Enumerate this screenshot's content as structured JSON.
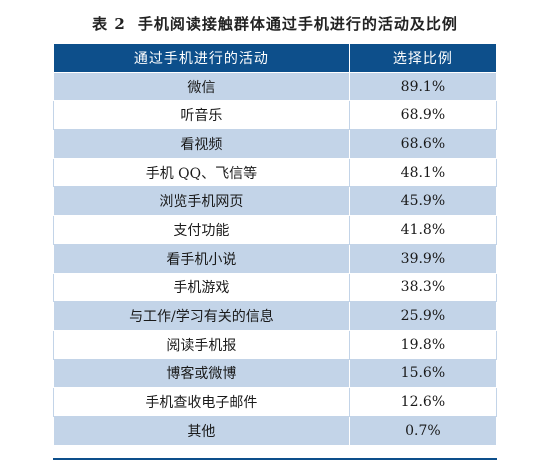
{
  "caption": {
    "number": "表 2",
    "title": "手机阅读接触群体通过手机进行的活动及比例"
  },
  "table": {
    "headers": [
      "通过手机进行的活动",
      "选择比例"
    ],
    "rows": [
      {
        "activity": "微信",
        "ratio": "89.1%"
      },
      {
        "activity": "听音乐",
        "ratio": "68.9%"
      },
      {
        "activity": "看视频",
        "ratio": "68.6%"
      },
      {
        "activity": "手机 QQ、飞信等",
        "ratio": "48.1%"
      },
      {
        "activity": "浏览手机网页",
        "ratio": "45.9%"
      },
      {
        "activity": "支付功能",
        "ratio": "41.8%"
      },
      {
        "activity": "看手机小说",
        "ratio": "39.9%"
      },
      {
        "activity": "手机游戏",
        "ratio": "38.3%"
      },
      {
        "activity": "与工作/学习有关的信息",
        "ratio": "25.9%"
      },
      {
        "activity": "阅读手机报",
        "ratio": "19.8%"
      },
      {
        "activity": "博客或微博",
        "ratio": "15.6%"
      },
      {
        "activity": "手机查收电子邮件",
        "ratio": "12.6%"
      },
      {
        "activity": "其他",
        "ratio": "0.7%"
      }
    ]
  },
  "colors": {
    "header_bg": "#0d4f8b",
    "stripe_bg": "#c3d4e8"
  }
}
